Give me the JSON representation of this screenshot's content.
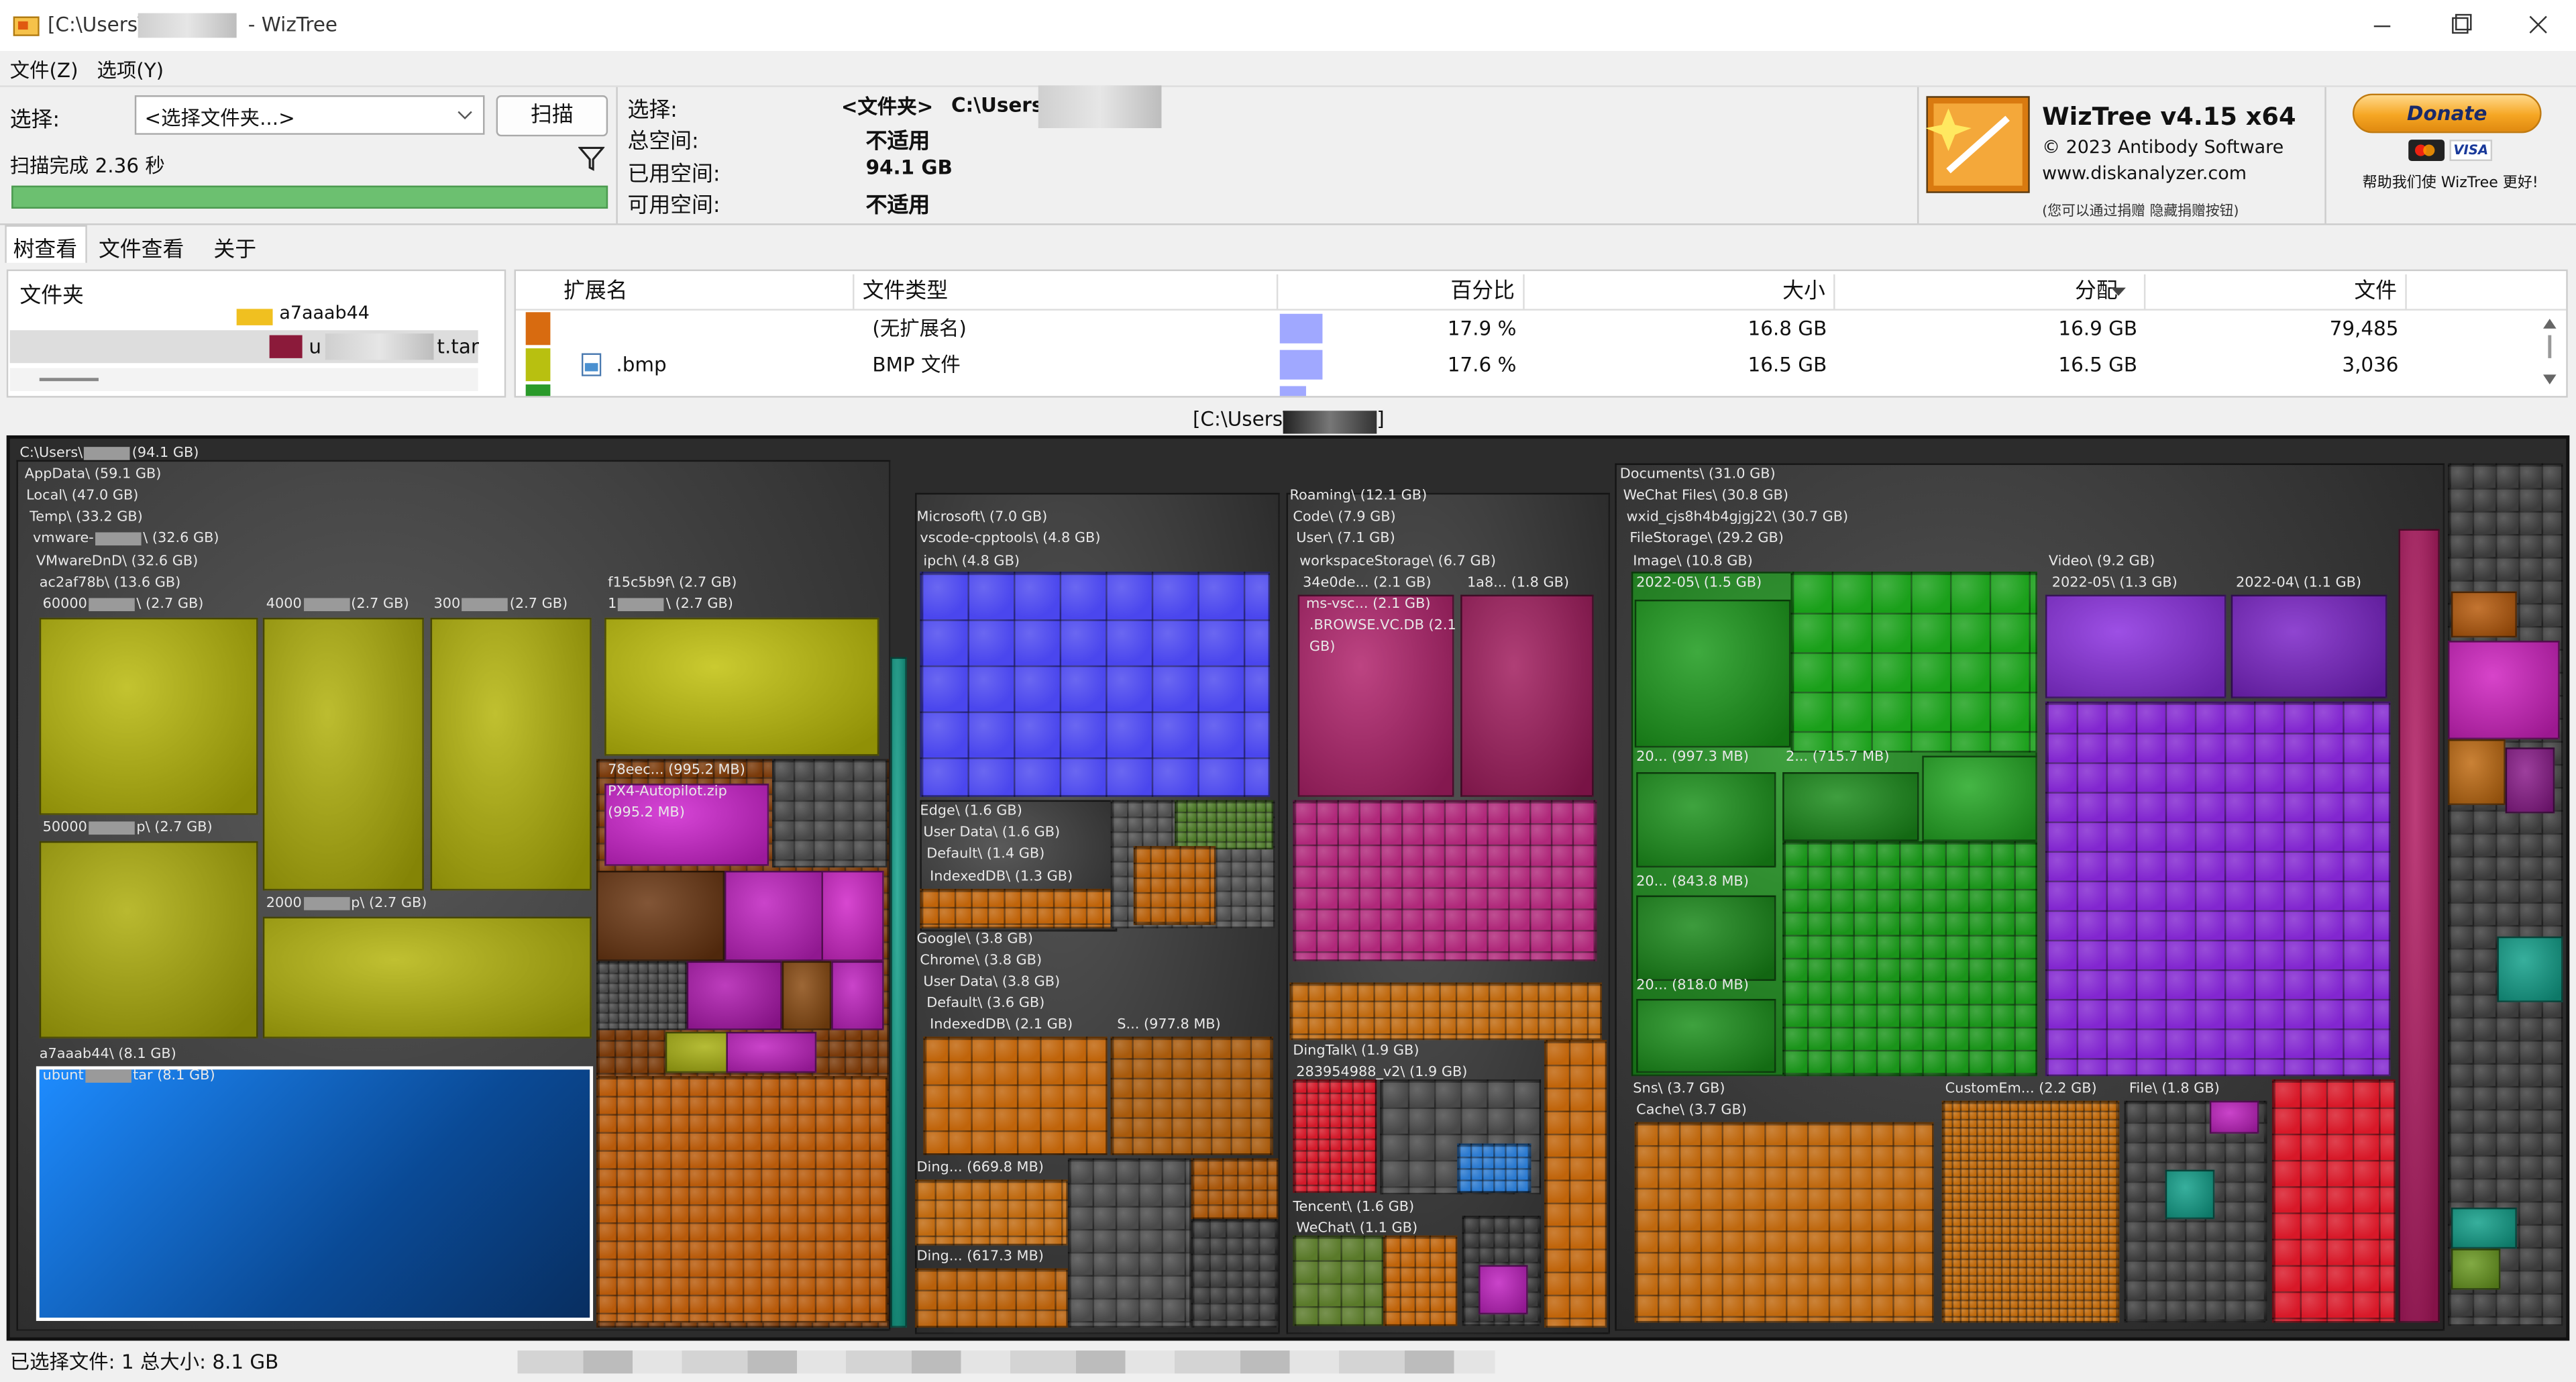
{
  "window": {
    "title_path": "[C:\\Users\\",
    "title_app": "- WizTree"
  },
  "menu": [
    "文件(Z)",
    "选项(Y)"
  ],
  "toolbar": {
    "select_label": "选择:",
    "folder_select": "<选择文件夹...>",
    "scan_button": "扫描",
    "scan_status": "扫描完成 2.36 秒"
  },
  "info": {
    "selection_label": "选择:",
    "selection_type": "<文件夹>",
    "selection_path": "C:\\Users\\",
    "rows": [
      {
        "label": "总空间:",
        "value": "不适用"
      },
      {
        "label": "已用空间:",
        "value": "94.1 GB"
      },
      {
        "label": "可用空间:",
        "value": "不适用"
      }
    ]
  },
  "brand": {
    "name": "WizTree v4.15 x64",
    "copyright": "© 2023 Antibody Software",
    "url": "www.diskanalyzer.com",
    "note": "(您可以通过捐赠 隐藏捐赠按钮)",
    "donate": "Donate",
    "card": "VISA",
    "help": "帮助我们使 WizTree 更好!"
  },
  "tabs": [
    "树查看",
    "文件查看",
    "关于"
  ],
  "folder_panel": {
    "header": "文件夹",
    "items": [
      "a7aaab44",
      "u",
      "t.tar"
    ]
  },
  "extensions": {
    "columns": [
      "扩展名",
      "文件类型",
      "百分比",
      "大小",
      "分配",
      "文件"
    ],
    "rows": [
      {
        "type": "(无扩展名)",
        "percent": "17.9 %",
        "size": "16.8 GB",
        "allocated": "16.9 GB",
        "files": "79,485"
      },
      {
        "ext": ".bmp",
        "type": "BMP 文件",
        "percent": "17.6 %",
        "size": "16.5 GB",
        "allocated": "16.5 GB",
        "files": "3,036"
      }
    ]
  },
  "treemap": {
    "path_prefix": "[C:\\Users\\",
    "path_suffix": "]",
    "labels": [
      {
        "before": "C:\\Users\\",
        "after": "(94.1 GB)"
      },
      "AppData\\ (59.1 GB)",
      "Local\\ (47.0 GB)",
      "Temp\\ (33.2 GB)",
      {
        "before": "vmware-",
        "after": "\\ (32.6 GB)"
      },
      "VMwareDnD\\ (32.6 GB)",
      "ac2af78b\\ (13.6 GB)",
      {
        "before": "60000",
        "after": "\\ (2.7 GB)"
      },
      {
        "before": "4000",
        "after": "(2.7 GB)"
      },
      {
        "before": "300",
        "after": "(2.7 GB)"
      },
      {
        "before": "50000",
        "after": "p\\ (2.7 GB)"
      },
      {
        "before": "2000",
        "after": "p\\ (2.7 GB)"
      },
      "f15c5b9f\\ (2.7 GB)",
      {
        "before": "1",
        "after": "\\ (2.7 GB)"
      },
      "78eec... (995.2 MB)",
      "PX4-Autopilot.zip",
      "(995.2 MB)",
      "a7aaab44\\ (8.1 GB)",
      {
        "before": "ubunt",
        "after": "tar (8.1 GB)"
      },
      "Microsoft\\ (7.0 GB)",
      "vscode-cpptools\\ (4.8 GB)",
      "ipch\\ (4.8 GB)",
      "Edge\\ (1.6 GB)",
      "User Data\\ (1.6 GB)",
      "Default\\ (1.4 GB)",
      "IndexedDB\\ (1.3 GB)",
      "Google\\ (3.8 GB)",
      "Chrome\\ (3.8 GB)",
      "User Data\\ (3.8 GB)",
      "Default\\ (3.6 GB)",
      "IndexedDB\\ (2.1 GB)",
      "S... (977.8 MB)",
      "Ding... (669.8 MB)",
      "Ding... (617.3 MB)",
      "Roaming\\ (12.1 GB)",
      "Code\\ (7.9 GB)",
      "User\\ (7.1 GB)",
      "workspaceStorage\\ (6.7 GB)",
      "34e0de... (2.1 GB)",
      "1a8... (1.8 GB)",
      "ms-vsc... (2.1 GB)",
      ".BROWSE.VC.DB (2.1",
      "GB)",
      "DingTalk\\ (1.9 GB)",
      "283954988_v2\\ (1.9 GB)",
      "Tencent\\ (1.6 GB)",
      "WeChat\\ (1.1 GB)",
      "Documents\\ (31.0 GB)",
      "WeChat Files\\ (30.8 GB)",
      "wxid_cjs8h4b4gjgj22\\ (30.7 GB)",
      "FileStorage\\ (29.2 GB)",
      "Image\\ (10.8 GB)",
      "2022-05\\ (1.5 GB)",
      "20... (997.3 MB)",
      "2... (715.7 MB)",
      "20... (843.8 MB)",
      "20... (818.0 MB)",
      "Video\\ (9.2 GB)",
      "2022-05\\ (1.3 GB)",
      "2022-04\\ (1.1 GB)",
      "Sns\\ (3.7 GB)",
      "Cache\\ (3.7 GB)",
      "CustomEm... (2.2 GB)",
      "File\\ (1.8 GB)"
    ]
  },
  "status": "已选择文件: 1  总大小: 8.1 GB"
}
